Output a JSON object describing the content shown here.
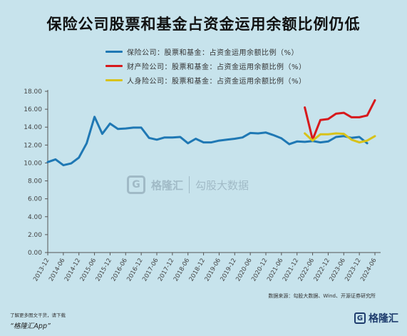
{
  "title": "保险公司股票和基金占资金运用余额比例仍低",
  "legend": [
    {
      "label": "保险公司：股票和基金：占资金运用余额比例（%）",
      "color": "#1f78b4"
    },
    {
      "label": "财产险公司：股票和基金：占资金运用余额比例（%）",
      "color": "#d7191c"
    },
    {
      "label": "人身险公司：股票和基金：占资金运用余额比例（%）",
      "color": "#d8c21a"
    }
  ],
  "watermark": {
    "brand": "格隆汇",
    "brand2": "勾股大数据"
  },
  "source": "数据来源：勾股大数据、Wind、开源证券研究所",
  "footer": {
    "note": "了解更多图文干货，请下载",
    "app": "“格隆汇App”",
    "logo": "格隆汇",
    "logo_mark": "G"
  },
  "chart_data": {
    "type": "line",
    "ylim": [
      0,
      18
    ],
    "yticks": [
      "0.00",
      "2.00",
      "4.00",
      "6.00",
      "8.00",
      "10.00",
      "12.00",
      "14.00",
      "16.00",
      "18.00"
    ],
    "xticks": [
      "2013-12",
      "2014-06",
      "2014-12",
      "2015-06",
      "2015-12",
      "2016-06",
      "2016-12",
      "2017-06",
      "2017-12",
      "2018-06",
      "2018-12",
      "2019-06",
      "2019-12",
      "2020-06",
      "2020-12",
      "2021-06",
      "2021-12",
      "2022-06",
      "2022-12",
      "2023-06",
      "2023-12",
      "2024-06"
    ],
    "grid": false,
    "series": [
      {
        "name": "保险公司：股票和基金：占资金运用余额比例（%）",
        "color": "#1f78b4",
        "points": [
          [
            "2013-12",
            10.1
          ],
          [
            "2014-03",
            10.4
          ],
          [
            "2014-06",
            9.75
          ],
          [
            "2014-09",
            9.95
          ],
          [
            "2014-12",
            10.6
          ],
          [
            "2015-03",
            12.2
          ],
          [
            "2015-06",
            15.15
          ],
          [
            "2015-09",
            13.25
          ],
          [
            "2015-12",
            14.4
          ],
          [
            "2016-03",
            13.8
          ],
          [
            "2016-06",
            13.85
          ],
          [
            "2016-09",
            13.95
          ],
          [
            "2016-12",
            13.95
          ],
          [
            "2017-03",
            12.8
          ],
          [
            "2017-06",
            12.6
          ],
          [
            "2017-09",
            12.85
          ],
          [
            "2017-12",
            12.85
          ],
          [
            "2018-03",
            12.9
          ],
          [
            "2018-06",
            12.2
          ],
          [
            "2018-09",
            12.7
          ],
          [
            "2018-12",
            12.3
          ],
          [
            "2019-03",
            12.3
          ],
          [
            "2019-06",
            12.5
          ],
          [
            "2019-09",
            12.6
          ],
          [
            "2019-12",
            12.7
          ],
          [
            "2020-03",
            12.85
          ],
          [
            "2020-06",
            13.35
          ],
          [
            "2020-09",
            13.3
          ],
          [
            "2020-12",
            13.4
          ],
          [
            "2021-03",
            13.1
          ],
          [
            "2021-06",
            12.75
          ],
          [
            "2021-09",
            12.1
          ],
          [
            "2021-12",
            12.4
          ],
          [
            "2022-03",
            12.35
          ],
          [
            "2022-06",
            12.45
          ],
          [
            "2022-09",
            12.3
          ],
          [
            "2022-12",
            12.4
          ],
          [
            "2023-03",
            12.9
          ],
          [
            "2023-06",
            13.0
          ],
          [
            "2023-09",
            12.8
          ],
          [
            "2023-12",
            12.9
          ],
          [
            "2024-03",
            12.2
          ]
        ]
      },
      {
        "name": "财产险公司：股票和基金：占资金运用余额比例（%）",
        "color": "#d7191c",
        "points": [
          [
            "2022-03",
            16.2
          ],
          [
            "2022-06",
            12.6
          ],
          [
            "2022-09",
            14.8
          ],
          [
            "2022-12",
            14.9
          ],
          [
            "2023-03",
            15.5
          ],
          [
            "2023-06",
            15.6
          ],
          [
            "2023-09",
            15.1
          ],
          [
            "2023-12",
            15.1
          ],
          [
            "2024-03",
            15.3
          ],
          [
            "2024-06",
            17.0
          ]
        ]
      },
      {
        "name": "人身险公司：股票和基金：占资金运用余额比例（%）",
        "color": "#d8c21a",
        "points": [
          [
            "2022-03",
            13.3
          ],
          [
            "2022-06",
            12.5
          ],
          [
            "2022-09",
            13.2
          ],
          [
            "2022-12",
            13.2
          ],
          [
            "2023-03",
            13.3
          ],
          [
            "2023-06",
            13.25
          ],
          [
            "2023-09",
            12.6
          ],
          [
            "2023-12",
            12.3
          ],
          [
            "2024-03",
            12.5
          ],
          [
            "2024-06",
            13.0
          ]
        ]
      }
    ]
  }
}
